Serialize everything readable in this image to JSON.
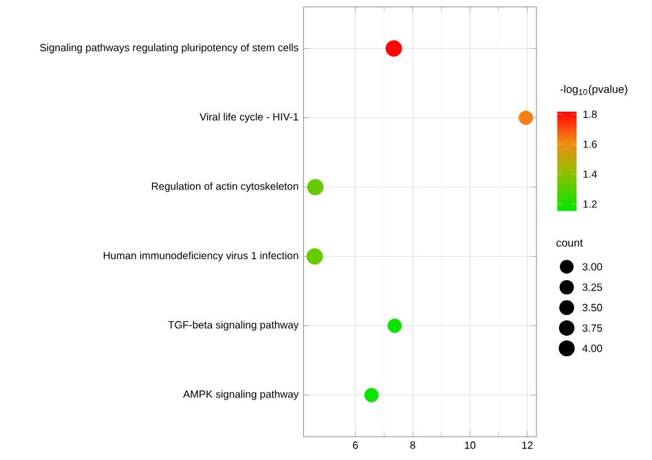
{
  "chart_data": {
    "type": "bubble",
    "orientation": "horizontal",
    "categories": [
      "Signaling pathways regulating pluripotency of stem cells",
      "Viral life cycle - HIV-1",
      "Regulation of actin cytoskeleton",
      "Human immunodeficiency virus 1 infection",
      "TGF-beta signaling pathway",
      "AMPK signaling pathway"
    ],
    "values": [
      7.34,
      11.95,
      4.6,
      4.58,
      7.37,
      6.56
    ],
    "sizes": [
      4,
      3,
      4,
      4,
      3,
      3
    ],
    "cvalues": [
      1.81,
      1.63,
      1.33,
      1.33,
      1.17,
      1.17
    ],
    "clabel": "-log$_{10}$(pvalue)",
    "clim": [
      1.15,
      1.82
    ],
    "cticks": [
      1.2,
      1.4,
      1.6,
      1.8
    ],
    "legend_title": "count",
    "size_legend": [
      {
        "value": 3,
        "label": "3.00"
      },
      {
        "value": 3.25,
        "label": "3.25"
      },
      {
        "value": 3.5,
        "label": "3.50"
      },
      {
        "value": 3.75,
        "label": "3.75"
      },
      {
        "value": 4,
        "label": "4.00"
      }
    ],
    "xlim": [
      4.19,
      12.32
    ],
    "xticks": [
      6,
      8,
      10,
      12
    ],
    "grid": true
  }
}
